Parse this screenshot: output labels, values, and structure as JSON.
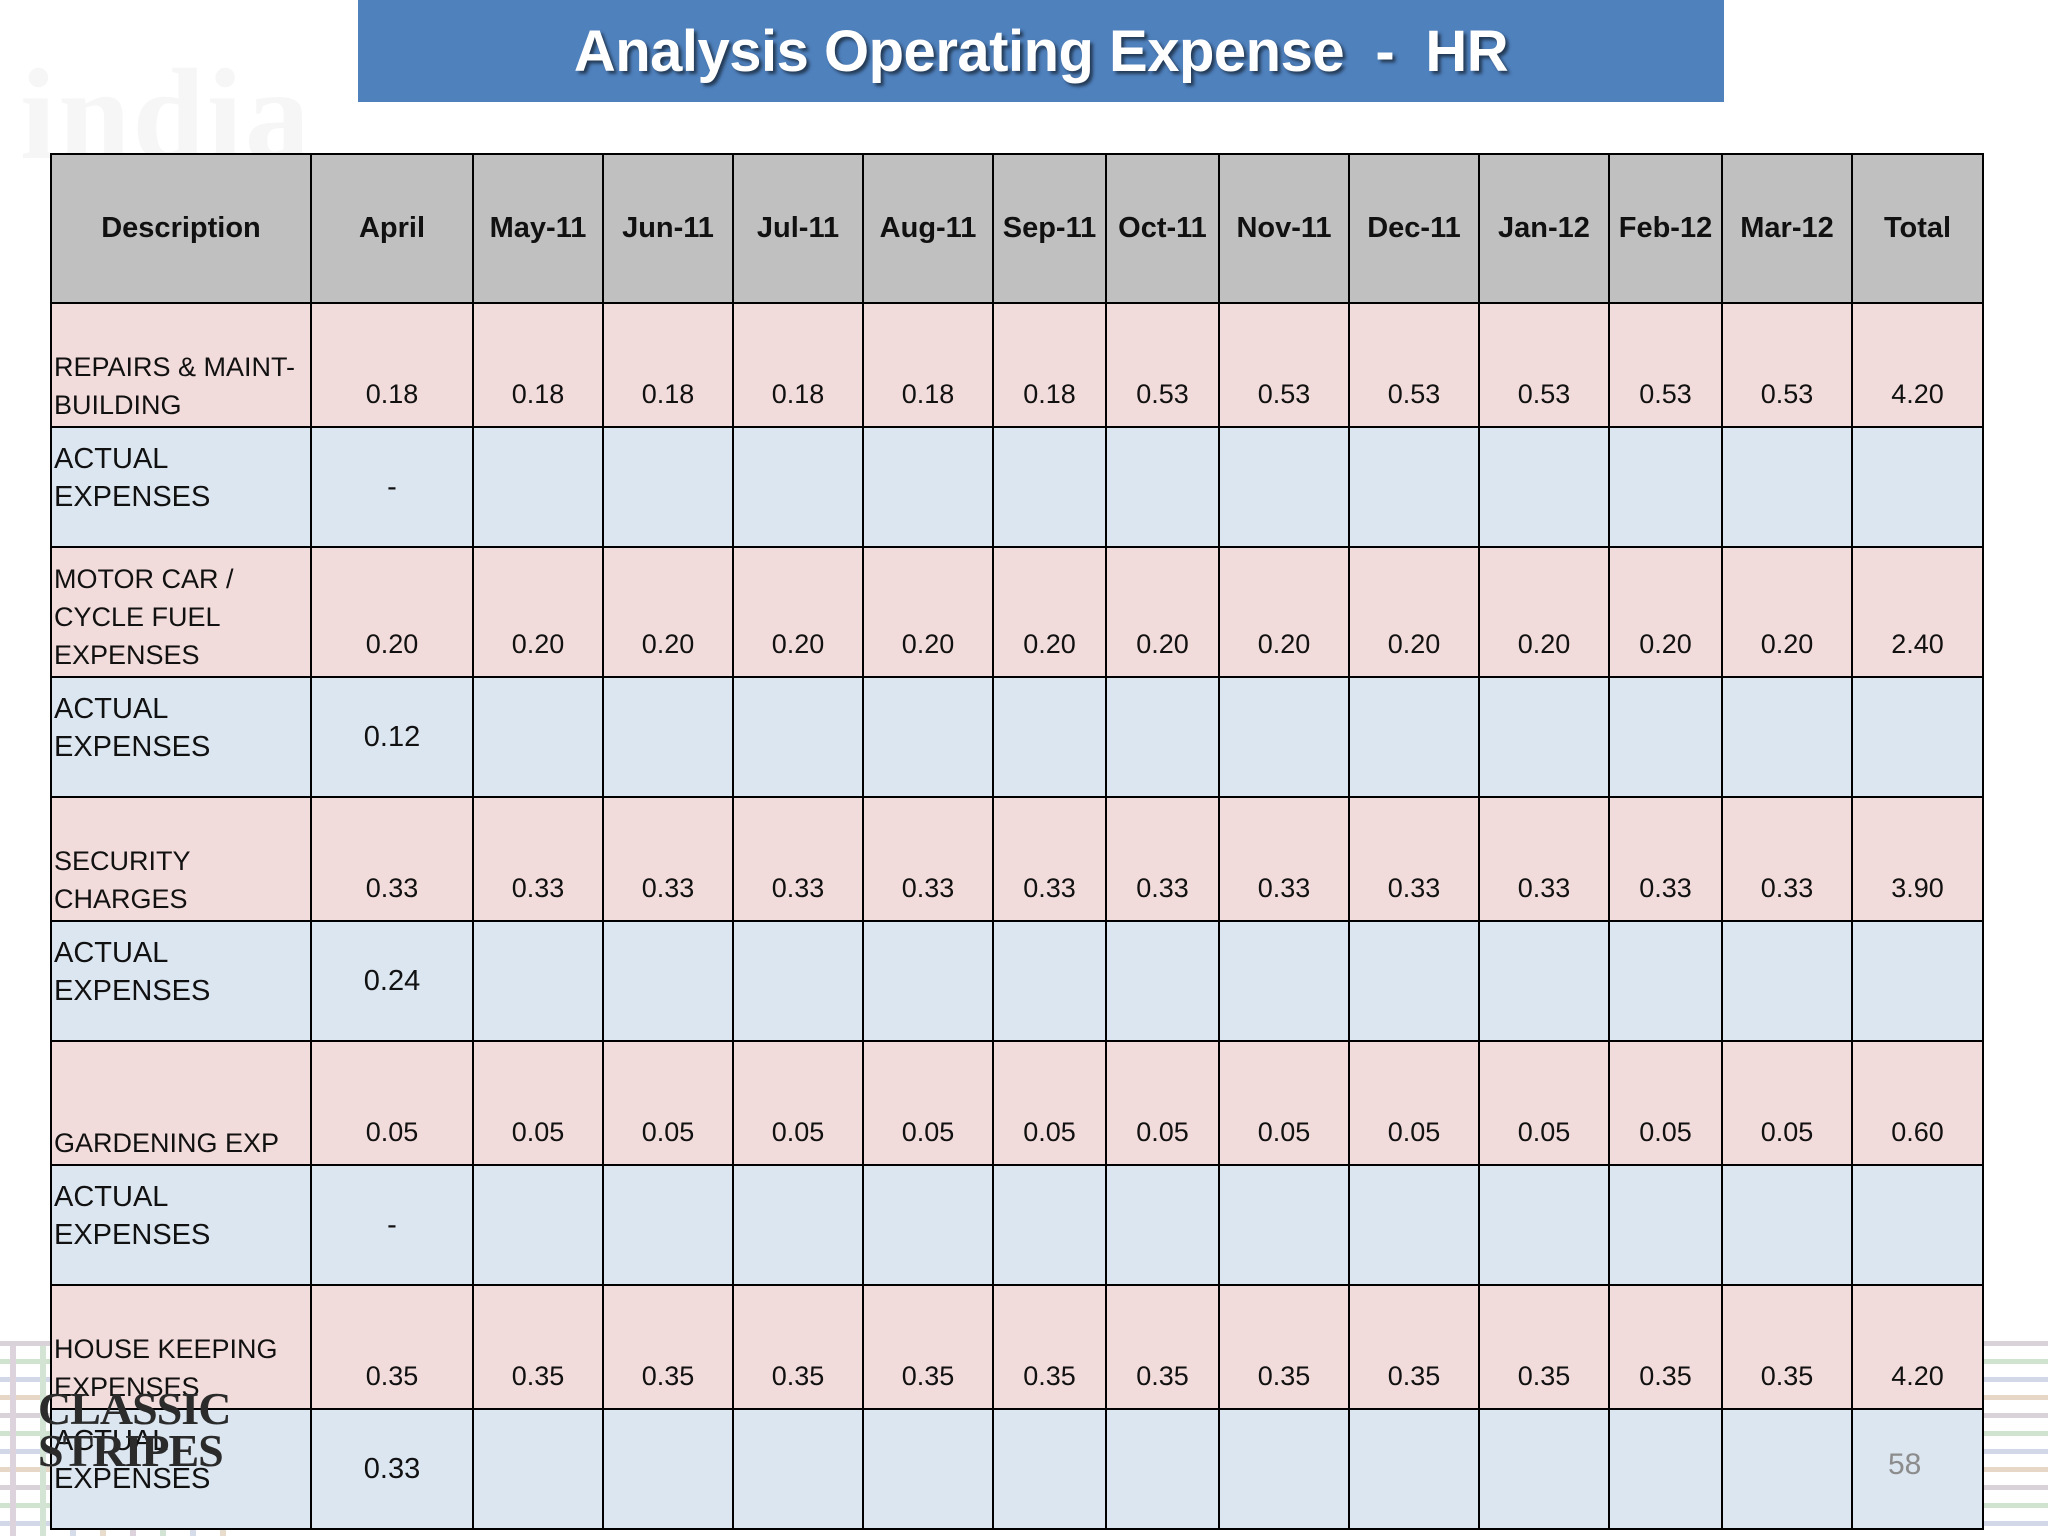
{
  "title": "Analysis Operating Expense  -  HR",
  "watermark_text": "india",
  "logo": {
    "line1": "CLASSIC",
    "line2": "STRIPES"
  },
  "page_number": "58",
  "colors": {
    "title_bg": "#4f81bd",
    "header_bg": "#c0c0c0",
    "budget_row_bg": "#f2dcdb",
    "actual_row_bg": "#dce6f1"
  },
  "table": {
    "headers": [
      "Description",
      "April",
      "May-11",
      "Jun-11",
      "Jul-11",
      "Aug-11",
      "Sep-11",
      "Oct-11",
      "Nov-11",
      "Dec-11",
      "Jan-12",
      "Feb-12",
      "Mar-12",
      "Total"
    ],
    "rows": [
      {
        "type": "budget",
        "desc": "REPAIRS & MAINT-\nBUILDING",
        "cells": [
          "0.18",
          "0.18",
          "0.18",
          "0.18",
          "0.18",
          "0.18",
          "0.53",
          "0.53",
          "0.53",
          "0.53",
          "0.53",
          "0.53",
          "4.20"
        ]
      },
      {
        "type": "actual",
        "desc": "ACTUAL EXPENSES",
        "cells": [
          "-",
          "",
          "",
          "",
          "",
          "",
          "",
          "",
          "",
          "",
          "",
          "",
          ""
        ]
      },
      {
        "type": "budget",
        "desc": "MOTOR CAR /\nCYCLE FUEL\nEXPENSES",
        "cells": [
          "0.20",
          "0.20",
          "0.20",
          "0.20",
          "0.20",
          "0.20",
          "0.20",
          "0.20",
          "0.20",
          "0.20",
          "0.20",
          "0.20",
          "2.40"
        ]
      },
      {
        "type": "actual",
        "desc": "ACTUAL EXPENSES",
        "cells": [
          "0.12",
          "",
          "",
          "",
          "",
          "",
          "",
          "",
          "",
          "",
          "",
          "",
          ""
        ]
      },
      {
        "type": "budget",
        "desc": "SECURITY CHARGES",
        "cells": [
          "0.33",
          "0.33",
          "0.33",
          "0.33",
          "0.33",
          "0.33",
          "0.33",
          "0.33",
          "0.33",
          "0.33",
          "0.33",
          "0.33",
          "3.90"
        ]
      },
      {
        "type": "actual",
        "desc": "ACTUAL EXPENSES",
        "cells": [
          "0.24",
          "",
          "",
          "",
          "",
          "",
          "",
          "",
          "",
          "",
          "",
          "",
          ""
        ]
      },
      {
        "type": "budget",
        "desc": "GARDENING EXP",
        "cells": [
          "0.05",
          "0.05",
          "0.05",
          "0.05",
          "0.05",
          "0.05",
          "0.05",
          "0.05",
          "0.05",
          "0.05",
          "0.05",
          "0.05",
          "0.60"
        ]
      },
      {
        "type": "actual",
        "desc": "ACTUAL EXPENSES",
        "cells": [
          "-",
          "",
          "",
          "",
          "",
          "",
          "",
          "",
          "",
          "",
          "",
          "",
          ""
        ]
      },
      {
        "type": "budget",
        "desc": "HOUSE KEEPING\nEXPENSES",
        "cells": [
          "0.35",
          "0.35",
          "0.35",
          "0.35",
          "0.35",
          "0.35",
          "0.35",
          "0.35",
          "0.35",
          "0.35",
          "0.35",
          "0.35",
          "4.20"
        ]
      },
      {
        "type": "actual",
        "desc": "ACTUAL EXPENSES",
        "cells": [
          "0.33",
          "",
          "",
          "",
          "",
          "",
          "",
          "",
          "",
          "",
          "",
          "",
          ""
        ]
      }
    ]
  }
}
